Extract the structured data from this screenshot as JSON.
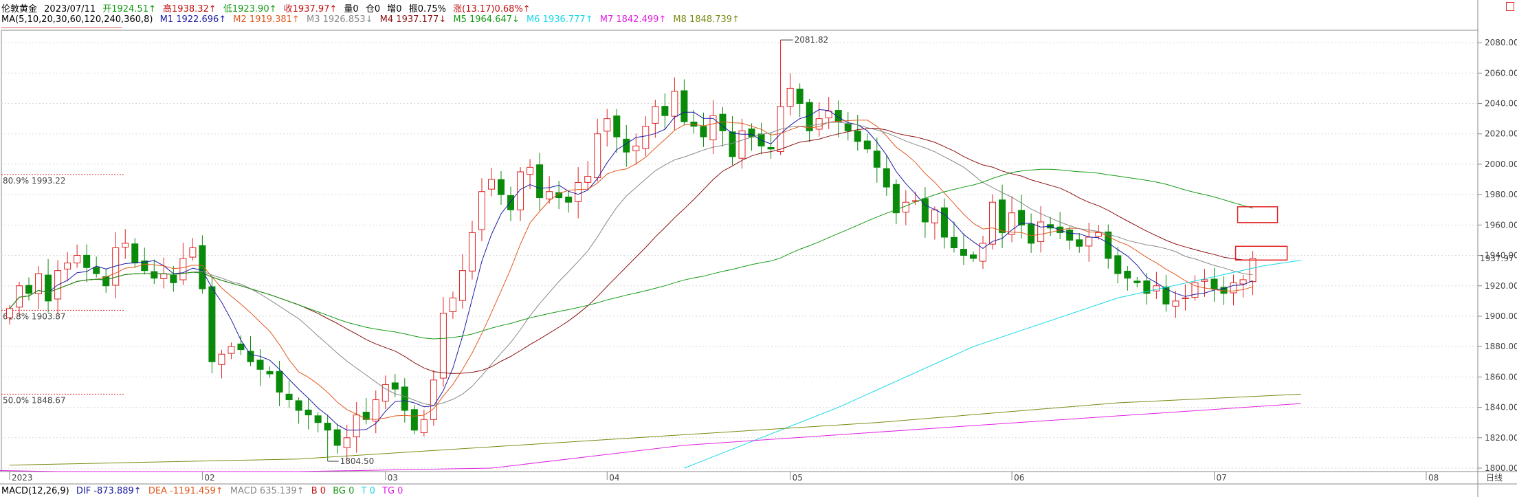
{
  "header": {
    "instrument": "伦敦黄金",
    "date": "2023/07/11",
    "open": "开1924.51↑",
    "high": "高1938.32↑",
    "low": "低1923.90↑",
    "close": "收1937.97↑",
    "volume": "量0",
    "position": "仓0",
    "increase": "增0",
    "amplitude": "振0.75%",
    "change": "涨(13.17)0.68%↑"
  },
  "ma_legend": {
    "label": "MA(5,10,20,30,60,120,240,360,8)",
    "items": [
      {
        "text": "M1 1922.696↑",
        "color": "#1a1aa6"
      },
      {
        "text": "M2 1919.381↑",
        "color": "#e2581c"
      },
      {
        "text": "M3 1926.853↓",
        "color": "#888888"
      },
      {
        "text": "M4 1937.177↓",
        "color": "#8b1010"
      },
      {
        "text": "M5 1964.647↓",
        "color": "#159a15"
      },
      {
        "text": "M6 1936.777↑",
        "color": "#13d8e8"
      },
      {
        "text": "M7 1842.499↑",
        "color": "#e020e0"
      },
      {
        "text": "M8 1848.739↑",
        "color": "#7a8a12"
      }
    ]
  },
  "macd_legend": {
    "label": "MACD(12,26,9)",
    "items": [
      {
        "text": "DIF -873.889↑",
        "color": "#1a1aa6"
      },
      {
        "text": "DEA -1191.459↑",
        "color": "#e2581c"
      },
      {
        "text": "MACD 635.139↑",
        "color": "#888888"
      },
      {
        "text": "B 0",
        "color": "#c01010"
      },
      {
        "text": "BG 0",
        "color": "#159a15"
      },
      {
        "text": "T 0",
        "color": "#13d8e8"
      },
      {
        "text": "TG 0",
        "color": "#e020e0"
      }
    ]
  },
  "chart_data": {
    "type": "candlestick",
    "yaxis": {
      "ticks": [
        1800,
        1820,
        1840,
        1860,
        1880,
        1900,
        1920,
        1940,
        1960,
        1980,
        2000,
        2020,
        2040,
        2060,
        2080
      ],
      "tick_labels": [
        "1800.00",
        "1820.00",
        "1840.00",
        "1860.00",
        "1880.00",
        "1900.00",
        "1920.00",
        "1940.00",
        "1960.00",
        "1980.00",
        "2000.00",
        "2020.00",
        "2040.00",
        "2060.00",
        "2080.00"
      ],
      "range": [
        1800,
        2090
      ]
    },
    "xaxis": {
      "labels": [
        {
          "text": "2023",
          "i": 0
        },
        {
          "text": "02",
          "i": 20
        },
        {
          "text": "03",
          "i": 39
        },
        {
          "text": "04",
          "i": 62
        },
        {
          "text": "05",
          "i": 81
        },
        {
          "text": "06",
          "i": 104
        },
        {
          "text": "07",
          "i": 125
        },
        {
          "text": "08",
          "i": 147
        }
      ],
      "period": "日线"
    },
    "current_price": {
      "value": 1937.97,
      "label": "1937.97"
    },
    "max_annotation": {
      "value": 2081.82,
      "label": "2081.82",
      "i": 80
    },
    "min_annotation": {
      "value": 1804.5,
      "label": "1804.50",
      "i": 33
    },
    "fib_levels": [
      {
        "label": "80.9% 1993.22",
        "value": 1993.22
      },
      {
        "label": "61.8% 1903.87",
        "value": 1903.87
      },
      {
        "label": "50.0% 1848.67",
        "value": 1848.67
      }
    ],
    "closes": [
      1905,
      1920,
      1915,
      1928,
      1910,
      1930,
      1935,
      1940,
      1932,
      1928,
      1920,
      1945,
      1948,
      1935,
      1930,
      1925,
      1928,
      1922,
      1938,
      1945,
      1918,
      1870,
      1875,
      1880,
      1878,
      1870,
      1865,
      1862,
      1850,
      1845,
      1838,
      1835,
      1830,
      1825,
      1815,
      1820,
      1835,
      1832,
      1845,
      1855,
      1852,
      1838,
      1825,
      1832,
      1858,
      1902,
      1912,
      1930,
      1955,
      1982,
      1990,
      1980,
      1970,
      1995,
      1998,
      1978,
      1982,
      1978,
      1975,
      1988,
      1992,
      2020,
      2030,
      2018,
      2008,
      2012,
      2025,
      2038,
      2032,
      2048,
      2028,
      2025,
      2018,
      2032,
      2022,
      2005,
      2022,
      2018,
      2012,
      2010,
      2038,
      2050,
      2040,
      2022,
      2030,
      2035,
      2028,
      2022,
      2015,
      2010,
      1998,
      1985,
      1968,
      1975,
      1976,
      1962,
      1970,
      1952,
      1945,
      1940,
      1938,
      1948,
      1975,
      1955,
      1968,
      1960,
      1948,
      1962,
      1958,
      1955,
      1950,
      1946,
      1952,
      1955,
      1938,
      1928,
      1925,
      1922,
      1915,
      1920,
      1908,
      1910,
      1912,
      1922,
      1924,
      1918,
      1915,
      1922,
      1924,
      1938
    ],
    "series": [
      {
        "name": "M1",
        "color": "#1a1aa6",
        "period": 5
      },
      {
        "name": "M2",
        "color": "#e2581c",
        "period": 10
      },
      {
        "name": "M3",
        "color": "#888888",
        "period": 20
      },
      {
        "name": "M4",
        "color": "#8b1010",
        "period": 30
      },
      {
        "name": "M5",
        "color": "#159a15",
        "period": 60
      }
    ],
    "long_series": [
      {
        "name": "M6",
        "color": "#13d8e8",
        "points": [
          [
            70,
            1800
          ],
          [
            86,
            1840
          ],
          [
            100,
            1880
          ],
          [
            115,
            1912
          ],
          [
            130,
            1933
          ],
          [
            134,
            1936.8
          ]
        ]
      },
      {
        "name": "M7",
        "color": "#e020e0",
        "points": [
          [
            -15,
            1800
          ],
          [
            5,
            1797
          ],
          [
            30,
            1797
          ],
          [
            50,
            1800
          ],
          [
            70,
            1815
          ],
          [
            100,
            1828
          ],
          [
            134,
            1842.5
          ]
        ]
      },
      {
        "name": "M8",
        "color": "#7a8a12",
        "points": [
          [
            0,
            1802
          ],
          [
            30,
            1806
          ],
          [
            60,
            1818
          ],
          [
            90,
            1830
          ],
          [
            115,
            1843
          ],
          [
            134,
            1848.7
          ]
        ]
      }
    ]
  }
}
